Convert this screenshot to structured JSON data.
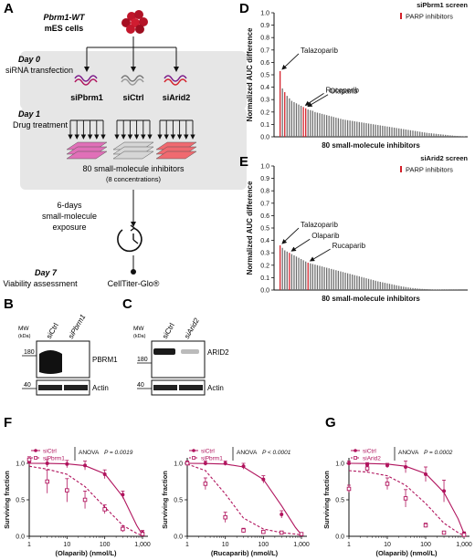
{
  "panel_letters": {
    "a": "A",
    "b": "B",
    "c": "C",
    "d": "D",
    "e": "E",
    "f": "F",
    "g": "G"
  },
  "colors": {
    "magenta": "#b0135d",
    "grey_bar": "#6e6e6e",
    "red_bar": "#d4202a",
    "box_bg": "#e6e6e6",
    "wb_band": "#111111"
  },
  "panel_a": {
    "cell_line_1": "Pbrm1-WT",
    "cell_line_2": "mES cells",
    "day0": "Day 0",
    "day0_desc": "siRNA transfection",
    "si_labels": [
      "siPbrm1",
      "siCtrl",
      "siArid2"
    ],
    "day1": "Day 1",
    "day1_desc": "Drug treatment",
    "inhibitors_line1": "80 small-molecule inhibitors",
    "inhibitors_line2": "(8 concentrations)",
    "exposure_line1": "6-days",
    "exposure_line2": "small-molecule",
    "exposure_line3": "exposure",
    "day7": "Day 7",
    "day7_desc": "Viability assessment",
    "assay": "CellTiter-Glo®"
  },
  "panel_b": {
    "mw": "MW",
    "kda": "(kDa)",
    "lanes": [
      "siCtrl",
      "siPbrm1"
    ],
    "markers": [
      "180",
      "40"
    ],
    "proteins": [
      "PBRM1",
      "Actin"
    ]
  },
  "panel_c": {
    "mw": "MW",
    "kda": "(kDa)",
    "lanes": [
      "siCtrl",
      "siArid2"
    ],
    "markers": [
      "180",
      "40"
    ],
    "proteins": [
      "ARID2",
      "Actin"
    ]
  },
  "chart_data": [
    {
      "id": "D",
      "type": "bar",
      "title": "siPbrm1 screen",
      "legend": "PARP inhibitors",
      "xlabel": "80 small-molecule inhibitors",
      "ylabel": "Normalized AUC difference",
      "ylim": [
        0,
        1.0
      ],
      "yticks": [
        "0.0",
        "0.1",
        "0.2",
        "0.3",
        "0.4",
        "0.5",
        "0.6",
        "0.7",
        "0.8",
        "0.9",
        "1.0"
      ],
      "values": [
        0.53,
        0.39,
        0.36,
        0.33,
        0.31,
        0.29,
        0.28,
        0.27,
        0.26,
        0.25,
        0.24,
        0.23,
        0.22,
        0.215,
        0.21,
        0.2,
        0.195,
        0.19,
        0.185,
        0.18,
        0.175,
        0.17,
        0.165,
        0.16,
        0.155,
        0.15,
        0.145,
        0.14,
        0.137,
        0.134,
        0.131,
        0.128,
        0.125,
        0.122,
        0.119,
        0.116,
        0.113,
        0.11,
        0.107,
        0.104,
        0.101,
        0.098,
        0.095,
        0.092,
        0.089,
        0.086,
        0.083,
        0.08,
        0.077,
        0.074,
        0.071,
        0.068,
        0.065,
        0.062,
        0.059,
        0.056,
        0.053,
        0.05,
        0.047,
        0.044,
        0.041,
        0.038,
        0.035,
        0.032,
        0.03,
        0.028,
        0.026,
        0.024,
        0.022,
        0.02,
        0.018,
        0.016,
        0.014,
        0.012,
        0.01,
        0.008,
        0.007,
        0.006,
        0.005,
        0.004
      ],
      "highlight": [
        0,
        2,
        10,
        11
      ],
      "annotations": [
        {
          "text": "Talazoparib",
          "bar": 0
        },
        {
          "text": "Rucaparib",
          "bar": 10
        },
        {
          "text": "Olaparib",
          "bar": 11
        }
      ]
    },
    {
      "id": "E",
      "type": "bar",
      "title": "siArid2 screen",
      "legend": "PARP inhibitors",
      "xlabel": "80 small-molecule inhibitors",
      "ylabel": "Normalized AUC difference",
      "ylim": [
        0,
        1.0
      ],
      "yticks": [
        "0.0",
        "0.1",
        "0.2",
        "0.3",
        "0.4",
        "0.5",
        "0.6",
        "0.7",
        "0.8",
        "0.9",
        "1.0"
      ],
      "values": [
        0.36,
        0.34,
        0.32,
        0.31,
        0.3,
        0.29,
        0.28,
        0.27,
        0.26,
        0.25,
        0.24,
        0.23,
        0.22,
        0.215,
        0.21,
        0.205,
        0.2,
        0.195,
        0.19,
        0.185,
        0.18,
        0.175,
        0.17,
        0.165,
        0.16,
        0.155,
        0.15,
        0.145,
        0.14,
        0.135,
        0.13,
        0.125,
        0.12,
        0.115,
        0.11,
        0.105,
        0.1,
        0.095,
        0.09,
        0.085,
        0.08,
        0.075,
        0.07,
        0.066,
        0.062,
        0.058,
        0.054,
        0.05,
        0.046,
        0.042,
        0.038,
        0.034,
        0.03,
        0.027,
        0.024,
        0.021,
        0.018,
        0.016,
        0.014,
        0.012,
        0.01,
        0.009,
        0.008,
        0.007,
        0.006,
        0.005,
        0.004,
        0.004,
        0.003,
        0.003,
        0.002,
        0.002,
        0.002,
        0.001,
        0.001,
        0.001,
        0.001,
        0.0,
        0.0,
        0.0
      ],
      "highlight": [
        0,
        4,
        12
      ],
      "annotations": [
        {
          "text": "Talazoparib",
          "bar": 0
        },
        {
          "text": "Olaparib",
          "bar": 4
        },
        {
          "text": "Rucaparib",
          "bar": 12
        }
      ]
    },
    {
      "id": "F1",
      "type": "scatter",
      "legend": [
        "siCtrl",
        "siPbrm1"
      ],
      "stat": "ANOVA",
      "pvalue": "P = 0.0019",
      "xlabel": "(Olaparib) (nmol/L)",
      "ylabel": "Surviving fraction",
      "xscale": "log",
      "xlim": [
        1,
        1000
      ],
      "xticks": [
        "1",
        "10",
        "100",
        "1,000"
      ],
      "ylim": [
        0,
        1.0
      ],
      "yticks": [
        "0.0",
        "0.5",
        "1.0"
      ],
      "series": [
        {
          "name": "siCtrl",
          "x": [
            1,
            3,
            10,
            30,
            100,
            300,
            1000
          ],
          "y": [
            1.02,
            1.0,
            0.99,
            0.97,
            0.85,
            0.57,
            0.05
          ],
          "err": [
            0.04,
            0.05,
            0.05,
            0.06,
            0.06,
            0.05,
            0.03
          ],
          "fit": [
            1.0,
            0.999,
            0.993,
            0.968,
            0.856,
            0.544,
            0.15,
            0.02
          ]
        },
        {
          "name": "siPbrm1",
          "x": [
            1,
            3,
            10,
            30,
            100,
            300,
            1000
          ],
          "y": [
            1.05,
            0.75,
            0.63,
            0.5,
            0.37,
            0.1,
            0.03
          ],
          "err": [
            0.04,
            0.16,
            0.16,
            0.12,
            0.06,
            0.04,
            0.02
          ],
          "fit": [
            0.96,
            0.92,
            0.85,
            0.68,
            0.4,
            0.15,
            0.04,
            0.01
          ]
        }
      ]
    },
    {
      "id": "F2",
      "type": "scatter",
      "legend": [
        "siCtrl",
        "siPbrm1"
      ],
      "stat": "ANOVA",
      "pvalue": "P < 0.0001",
      "xlabel": "(Rucaparib) (nmol/L)",
      "ylabel": "Surviving fraction",
      "xscale": "log",
      "xlim": [
        1,
        1000
      ],
      "xticks": [
        "1",
        "10",
        "100",
        "1,000"
      ],
      "ylim": [
        0,
        1.0
      ],
      "yticks": [
        "0.0",
        "0.5",
        "1.0"
      ],
      "series": [
        {
          "name": "siCtrl",
          "x": [
            1,
            3,
            10,
            30,
            100,
            300,
            1000
          ],
          "y": [
            1.0,
            1.0,
            1.0,
            0.96,
            0.78,
            0.3,
            0.03
          ],
          "err": [
            0.03,
            0.03,
            0.03,
            0.04,
            0.05,
            0.05,
            0.02
          ],
          "fit": [
            1.0,
            0.998,
            0.99,
            0.95,
            0.78,
            0.42,
            0.12,
            0.02
          ]
        },
        {
          "name": "siPbrm1",
          "x": [
            1,
            3,
            10,
            30,
            100,
            300,
            1000
          ],
          "y": [
            1.0,
            0.72,
            0.26,
            0.08,
            0.06,
            0.05,
            0.03
          ],
          "err": [
            0.03,
            0.08,
            0.07,
            0.03,
            0.02,
            0.02,
            0.02
          ],
          "fit": [
            0.99,
            0.9,
            0.58,
            0.25,
            0.1,
            0.05,
            0.03,
            0.02
          ]
        }
      ]
    },
    {
      "id": "G",
      "type": "scatter",
      "legend": [
        "siCtrl",
        "siArid2"
      ],
      "stat": "ANOVA",
      "pvalue": "P = 0.0002",
      "xlabel": "(Olaparib) (nmol/L)",
      "ylabel": "Surviving fraction",
      "xscale": "log",
      "xlim": [
        1,
        1000
      ],
      "xticks": [
        "1",
        "10",
        "100",
        "1,000"
      ],
      "ylim": [
        0,
        1.0
      ],
      "yticks": [
        "0.0",
        "0.5",
        "1.0"
      ],
      "series": [
        {
          "name": "siCtrl",
          "x": [
            1,
            3,
            10,
            30,
            100,
            300,
            1000
          ],
          "y": [
            1.0,
            0.98,
            0.97,
            0.95,
            0.85,
            0.62,
            0.04
          ],
          "err": [
            0.03,
            0.03,
            0.03,
            0.08,
            0.1,
            0.15,
            0.02
          ],
          "fit": [
            1.0,
            0.998,
            0.99,
            0.96,
            0.86,
            0.6,
            0.24,
            0.04
          ]
        },
        {
          "name": "siArid2",
          "x": [
            1,
            3,
            10,
            30,
            100,
            300,
            1000
          ],
          "y": [
            0.65,
            0.93,
            0.72,
            0.52,
            0.15,
            0.05,
            0.02
          ],
          "err": [
            0.05,
            0.05,
            0.08,
            0.12,
            0.03,
            0.02,
            0.02
          ],
          "fit": [
            0.9,
            0.88,
            0.83,
            0.7,
            0.45,
            0.18,
            0.05,
            0.01
          ]
        }
      ]
    }
  ]
}
